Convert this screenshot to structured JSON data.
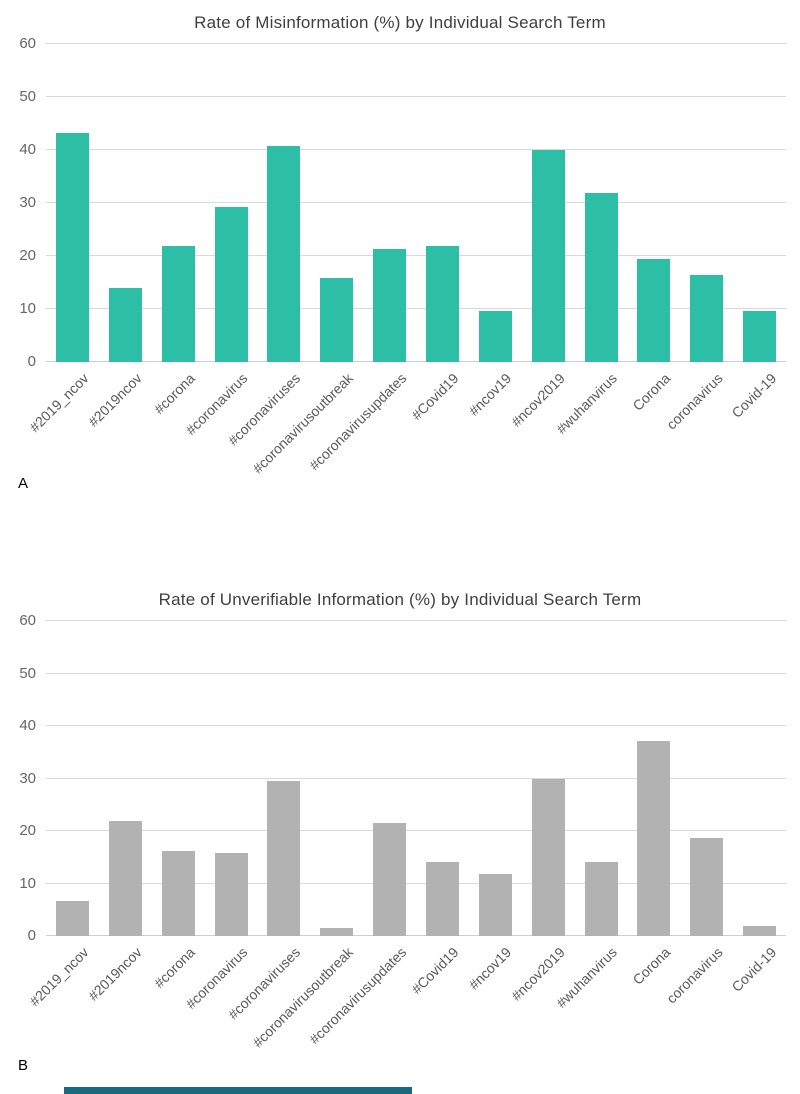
{
  "page": {
    "background": "#ffffff",
    "footer_strip_color": "#176b80"
  },
  "panels": [
    {
      "label": "A"
    },
    {
      "label": "B"
    }
  ],
  "chart_data": [
    {
      "type": "bar",
      "title": "Rate of Misinformation (%) by Individual Search Term",
      "categories": [
        "#2019_ncov",
        "#2019ncov",
        "#corona",
        "#coronavirus",
        "#coronaviruses",
        "#coronavirusoutbreak",
        "#coronavirusupdates",
        "#Covid19",
        "#ncov19",
        "#ncov2019",
        "#wuhanvirus",
        "Corona",
        "coronavirus",
        "Covid-19"
      ],
      "values": [
        43.2,
        14.0,
        21.9,
        29.3,
        40.7,
        15.8,
        21.4,
        21.9,
        9.7,
        40.0,
        31.9,
        19.5,
        16.5,
        9.7
      ],
      "xlabel": "",
      "ylabel": "",
      "ylim": [
        0,
        60
      ],
      "yticks": [
        0,
        10,
        20,
        30,
        40,
        50,
        60
      ],
      "bar_color": "#2cbfa5",
      "grid": true,
      "legend_position": "none"
    },
    {
      "type": "bar",
      "title": "Rate of Unverifiable Information (%) by Individual Search Term",
      "categories": [
        "#2019_ncov",
        "#2019ncov",
        "#corona",
        "#coronavirus",
        "#coronaviruses",
        "#coronavirusoutbreak",
        "#coronavirusupdates",
        "#Covid19",
        "#ncov19",
        "#ncov2019",
        "#wuhanvirus",
        "Corona",
        "coronavirus",
        "Covid-19"
      ],
      "values": [
        6.7,
        22.0,
        16.1,
        15.8,
        29.5,
        1.5,
        21.6,
        14.1,
        11.8,
        30.0,
        14.1,
        37.2,
        18.7,
        2.0
      ],
      "xlabel": "",
      "ylabel": "",
      "ylim": [
        0,
        60
      ],
      "yticks": [
        0,
        10,
        20,
        30,
        40,
        50,
        60
      ],
      "bar_color": "#b2b2b2",
      "grid": true,
      "legend_position": "none"
    }
  ]
}
